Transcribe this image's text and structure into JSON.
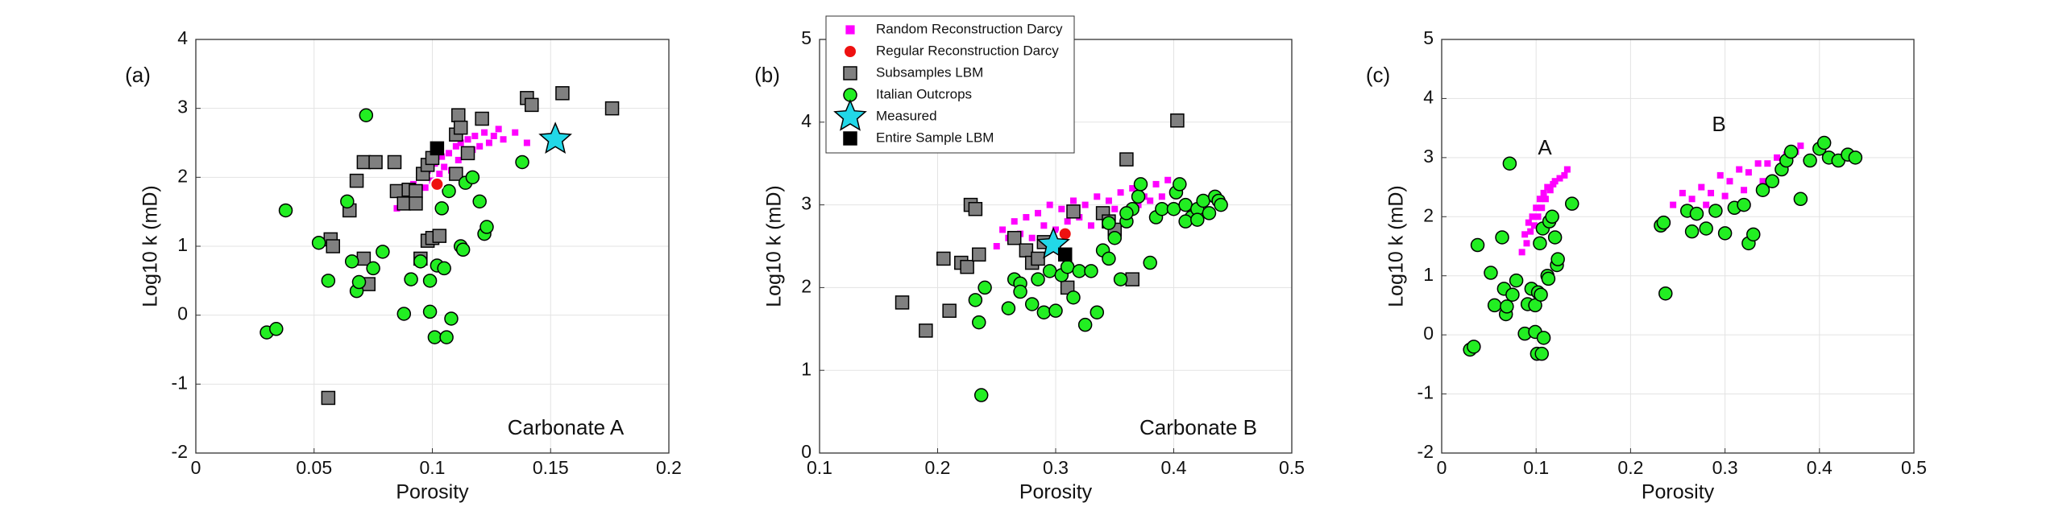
{
  "chart_data": [
    {
      "type": "scatter",
      "panel_label": "(a)",
      "annotations": [
        "Carbonate A"
      ],
      "x_label": "Porosity",
      "y_label": "Log10 k (mD)",
      "xlim": [
        0,
        0.2
      ],
      "xticks": [
        0,
        0.05,
        0.1,
        0.15,
        0.2
      ],
      "ylim": [
        -2,
        4
      ],
      "yticks": [
        -2,
        -1,
        0,
        1,
        2,
        3,
        4
      ],
      "grid": true,
      "series": [
        {
          "color": "#ff00ff",
          "marker": "small-square",
          "x": [
            0.085,
            0.088,
            0.09,
            0.092,
            0.094,
            0.095,
            0.097,
            0.098,
            0.1,
            0.101,
            0.103,
            0.104,
            0.105,
            0.107,
            0.108,
            0.11,
            0.111,
            0.112,
            0.114,
            0.115,
            0.117,
            0.118,
            0.12,
            0.122,
            0.124,
            0.126,
            0.128,
            0.13,
            0.135,
            0.14
          ],
          "y": [
            1.55,
            1.75,
            1.6,
            1.9,
            1.8,
            2.0,
            1.85,
            2.1,
            1.95,
            2.2,
            2.05,
            2.3,
            2.15,
            2.35,
            2.1,
            2.45,
            2.25,
            2.5,
            2.3,
            2.55,
            2.4,
            2.6,
            2.45,
            2.65,
            2.5,
            2.6,
            2.7,
            2.55,
            2.65,
            2.5
          ]
        },
        {
          "color": "#808080",
          "marker": "square",
          "x": [
            0.056,
            0.057,
            0.058,
            0.065,
            0.068,
            0.071,
            0.071,
            0.073,
            0.076,
            0.084,
            0.085,
            0.088,
            0.09,
            0.093,
            0.093,
            0.096,
            0.098,
            0.095,
            0.098,
            0.1,
            0.103,
            0.11,
            0.111,
            0.112,
            0.115,
            0.121,
            0.14,
            0.142,
            0.155,
            0.176,
            0.1,
            0.11
          ],
          "y": [
            -1.2,
            1.1,
            1.0,
            1.52,
            1.95,
            2.22,
            0.82,
            0.45,
            2.22,
            2.22,
            1.8,
            1.62,
            1.82,
            1.8,
            1.62,
            2.05,
            2.18,
            0.82,
            1.08,
            1.12,
            1.15,
            2.62,
            2.9,
            2.72,
            2.35,
            2.85,
            3.15,
            3.05,
            3.22,
            3.0,
            2.28,
            2.05
          ]
        },
        {
          "color": "#22ee22",
          "marker": "circle",
          "x": [
            0.072,
            0.038,
            0.03,
            0.034,
            0.052,
            0.056,
            0.064,
            0.066,
            0.068,
            0.069,
            0.075,
            0.079,
            0.088,
            0.091,
            0.095,
            0.099,
            0.101,
            0.099,
            0.102,
            0.105,
            0.108,
            0.106,
            0.104,
            0.107,
            0.112,
            0.114,
            0.117,
            0.12,
            0.122,
            0.123,
            0.138,
            0.113
          ],
          "y": [
            2.9,
            1.52,
            -0.25,
            -0.2,
            1.05,
            0.5,
            1.65,
            0.78,
            0.35,
            0.48,
            0.68,
            0.92,
            0.02,
            0.52,
            0.78,
            0.05,
            -0.32,
            0.5,
            0.72,
            0.68,
            -0.05,
            -0.32,
            1.55,
            1.8,
            1.0,
            1.92,
            2.0,
            1.65,
            1.18,
            1.28,
            2.22,
            0.95
          ]
        },
        {
          "color": "#ee1111",
          "marker": "dot",
          "x": [
            0.102
          ],
          "y": [
            1.9
          ]
        },
        {
          "color": "#22d8e8",
          "marker": "star",
          "x": [
            0.152
          ],
          "y": [
            2.55
          ]
        },
        {
          "color": "#000000",
          "marker": "square",
          "x": [
            0.102
          ],
          "y": [
            2.42
          ]
        }
      ]
    },
    {
      "type": "scatter",
      "panel_label": "(b)",
      "annotations": [
        "Carbonate B"
      ],
      "x_label": "Porosity",
      "y_label": "Log10 k (mD)",
      "xlim": [
        0.1,
        0.5
      ],
      "xticks": [
        0.1,
        0.2,
        0.3,
        0.4,
        0.5
      ],
      "ylim": [
        0,
        5
      ],
      "yticks": [
        0,
        1,
        2,
        3,
        4,
        5
      ],
      "grid": true,
      "legend": "upper left",
      "series": [
        {
          "name": "Random Reconstruction Darcy",
          "color": "#ff00ff",
          "marker": "small-square",
          "x": [
            0.25,
            0.255,
            0.26,
            0.265,
            0.27,
            0.275,
            0.28,
            0.285,
            0.29,
            0.295,
            0.3,
            0.305,
            0.31,
            0.315,
            0.32,
            0.325,
            0.33,
            0.335,
            0.34,
            0.345,
            0.35,
            0.355,
            0.36,
            0.365,
            0.37,
            0.375,
            0.38,
            0.385,
            0.39,
            0.395
          ],
          "y": [
            2.5,
            2.7,
            2.6,
            2.8,
            2.65,
            2.85,
            2.6,
            2.9,
            2.75,
            3.0,
            2.7,
            2.95,
            2.8,
            3.05,
            2.85,
            3.0,
            2.75,
            3.1,
            2.9,
            3.05,
            2.95,
            3.15,
            2.9,
            3.2,
            3.0,
            3.1,
            3.05,
            3.25,
            3.1,
            3.3
          ]
        },
        {
          "name": "Regular Reconstruction Darcy",
          "color": "#ee1111",
          "marker": "dot",
          "x": [
            0.308
          ],
          "y": [
            2.65
          ]
        },
        {
          "name": "Subsamples LBM",
          "color": "#808080",
          "marker": "square",
          "x": [
            0.17,
            0.19,
            0.205,
            0.21,
            0.22,
            0.225,
            0.228,
            0.232,
            0.235,
            0.265,
            0.275,
            0.28,
            0.285,
            0.29,
            0.31,
            0.315,
            0.34,
            0.36,
            0.365,
            0.403,
            0.345,
            0.35
          ],
          "y": [
            1.82,
            1.48,
            2.35,
            1.72,
            2.3,
            2.25,
            3.0,
            2.95,
            2.4,
            2.6,
            2.45,
            2.3,
            2.35,
            2.55,
            2.0,
            2.92,
            2.9,
            3.55,
            2.1,
            4.02,
            2.8,
            2.7
          ]
        },
        {
          "name": "Italian Outcrops",
          "color": "#22ee22",
          "marker": "circle",
          "x": [
            0.237,
            0.232,
            0.235,
            0.24,
            0.26,
            0.265,
            0.27,
            0.27,
            0.28,
            0.285,
            0.29,
            0.295,
            0.3,
            0.305,
            0.31,
            0.315,
            0.32,
            0.325,
            0.33,
            0.335,
            0.34,
            0.345,
            0.35,
            0.355,
            0.36,
            0.365,
            0.37,
            0.372,
            0.38,
            0.385,
            0.39,
            0.4,
            0.402,
            0.405,
            0.41,
            0.415,
            0.42,
            0.425,
            0.43,
            0.435,
            0.438,
            0.44,
            0.41,
            0.42,
            0.36,
            0.345
          ],
          "y": [
            0.7,
            1.85,
            1.58,
            2.0,
            1.75,
            2.1,
            2.05,
            1.95,
            1.8,
            2.1,
            1.7,
            2.2,
            1.72,
            2.15,
            2.25,
            1.88,
            2.2,
            1.55,
            2.2,
            1.7,
            2.45,
            2.35,
            2.6,
            2.1,
            2.8,
            2.95,
            3.1,
            3.25,
            2.3,
            2.85,
            2.95,
            2.95,
            3.15,
            3.25,
            3.0,
            2.85,
            2.95,
            3.05,
            2.9,
            3.1,
            3.05,
            3.0,
            2.8,
            2.82,
            2.9,
            2.78
          ]
        },
        {
          "name": "Measured",
          "color": "#22d8e8",
          "marker": "star",
          "x": [
            0.298
          ],
          "y": [
            2.52
          ]
        },
        {
          "name": "Entire Sample LBM",
          "color": "#000000",
          "marker": "square",
          "x": [
            0.308
          ],
          "y": [
            2.4
          ]
        }
      ]
    },
    {
      "type": "scatter",
      "panel_label": "(c)",
      "annotations": [
        "A",
        "B"
      ],
      "x_label": "Porosity",
      "y_label": "Log10 k (mD)",
      "xlim": [
        0,
        0.5
      ],
      "xticks": [
        0,
        0.1,
        0.2,
        0.3,
        0.4,
        0.5
      ],
      "ylim": [
        -2,
        5
      ],
      "yticks": [
        -2,
        -1,
        0,
        1,
        2,
        3,
        4,
        5
      ],
      "grid": true,
      "series": [
        {
          "color": "#ff00ff",
          "marker": "small-square",
          "x": [
            0.085,
            0.088,
            0.09,
            0.092,
            0.094,
            0.096,
            0.098,
            0.1,
            0.102,
            0.104,
            0.106,
            0.108,
            0.11,
            0.112,
            0.115,
            0.118,
            0.12,
            0.125,
            0.13,
            0.133,
            0.245,
            0.255,
            0.265,
            0.275,
            0.285,
            0.295,
            0.305,
            0.315,
            0.325,
            0.335,
            0.345,
            0.355,
            0.365,
            0.375,
            0.38,
            0.26,
            0.28,
            0.3,
            0.32,
            0.34
          ],
          "y": [
            1.4,
            1.7,
            1.55,
            1.9,
            1.75,
            2.0,
            1.85,
            2.15,
            2.0,
            2.3,
            2.15,
            2.4,
            2.3,
            2.5,
            2.45,
            2.55,
            2.6,
            2.65,
            2.7,
            2.8,
            2.2,
            2.4,
            2.3,
            2.5,
            2.4,
            2.7,
            2.6,
            2.8,
            2.75,
            2.9,
            2.9,
            3.0,
            3.05,
            3.1,
            3.2,
            2.1,
            2.2,
            2.35,
            2.45,
            2.6
          ]
        },
        {
          "color": "#22ee22",
          "marker": "circle",
          "x": [
            0.072,
            0.038,
            0.03,
            0.034,
            0.052,
            0.056,
            0.064,
            0.066,
            0.068,
            0.069,
            0.075,
            0.079,
            0.088,
            0.091,
            0.095,
            0.099,
            0.101,
            0.099,
            0.102,
            0.105,
            0.108,
            0.106,
            0.104,
            0.107,
            0.112,
            0.114,
            0.117,
            0.12,
            0.122,
            0.123,
            0.138,
            0.113,
            0.237,
            0.232,
            0.235,
            0.26,
            0.265,
            0.27,
            0.28,
            0.29,
            0.3,
            0.31,
            0.32,
            0.325,
            0.33,
            0.34,
            0.35,
            0.36,
            0.365,
            0.37,
            0.38,
            0.39,
            0.4,
            0.405,
            0.41,
            0.42,
            0.43,
            0.438
          ],
          "y": [
            2.9,
            1.52,
            -0.25,
            -0.2,
            1.05,
            0.5,
            1.65,
            0.78,
            0.35,
            0.48,
            0.68,
            0.92,
            0.02,
            0.52,
            0.78,
            0.05,
            -0.32,
            0.5,
            0.72,
            0.68,
            -0.05,
            -0.32,
            1.55,
            1.8,
            1.0,
            1.92,
            2.0,
            1.65,
            1.18,
            1.28,
            2.22,
            0.95,
            0.7,
            1.85,
            1.9,
            2.1,
            1.75,
            2.05,
            1.8,
            2.1,
            1.72,
            2.15,
            2.2,
            1.55,
            1.7,
            2.45,
            2.6,
            2.8,
            2.95,
            3.1,
            2.3,
            2.95,
            3.15,
            3.25,
            3.0,
            2.95,
            3.05,
            3.0
          ]
        }
      ]
    }
  ]
}
